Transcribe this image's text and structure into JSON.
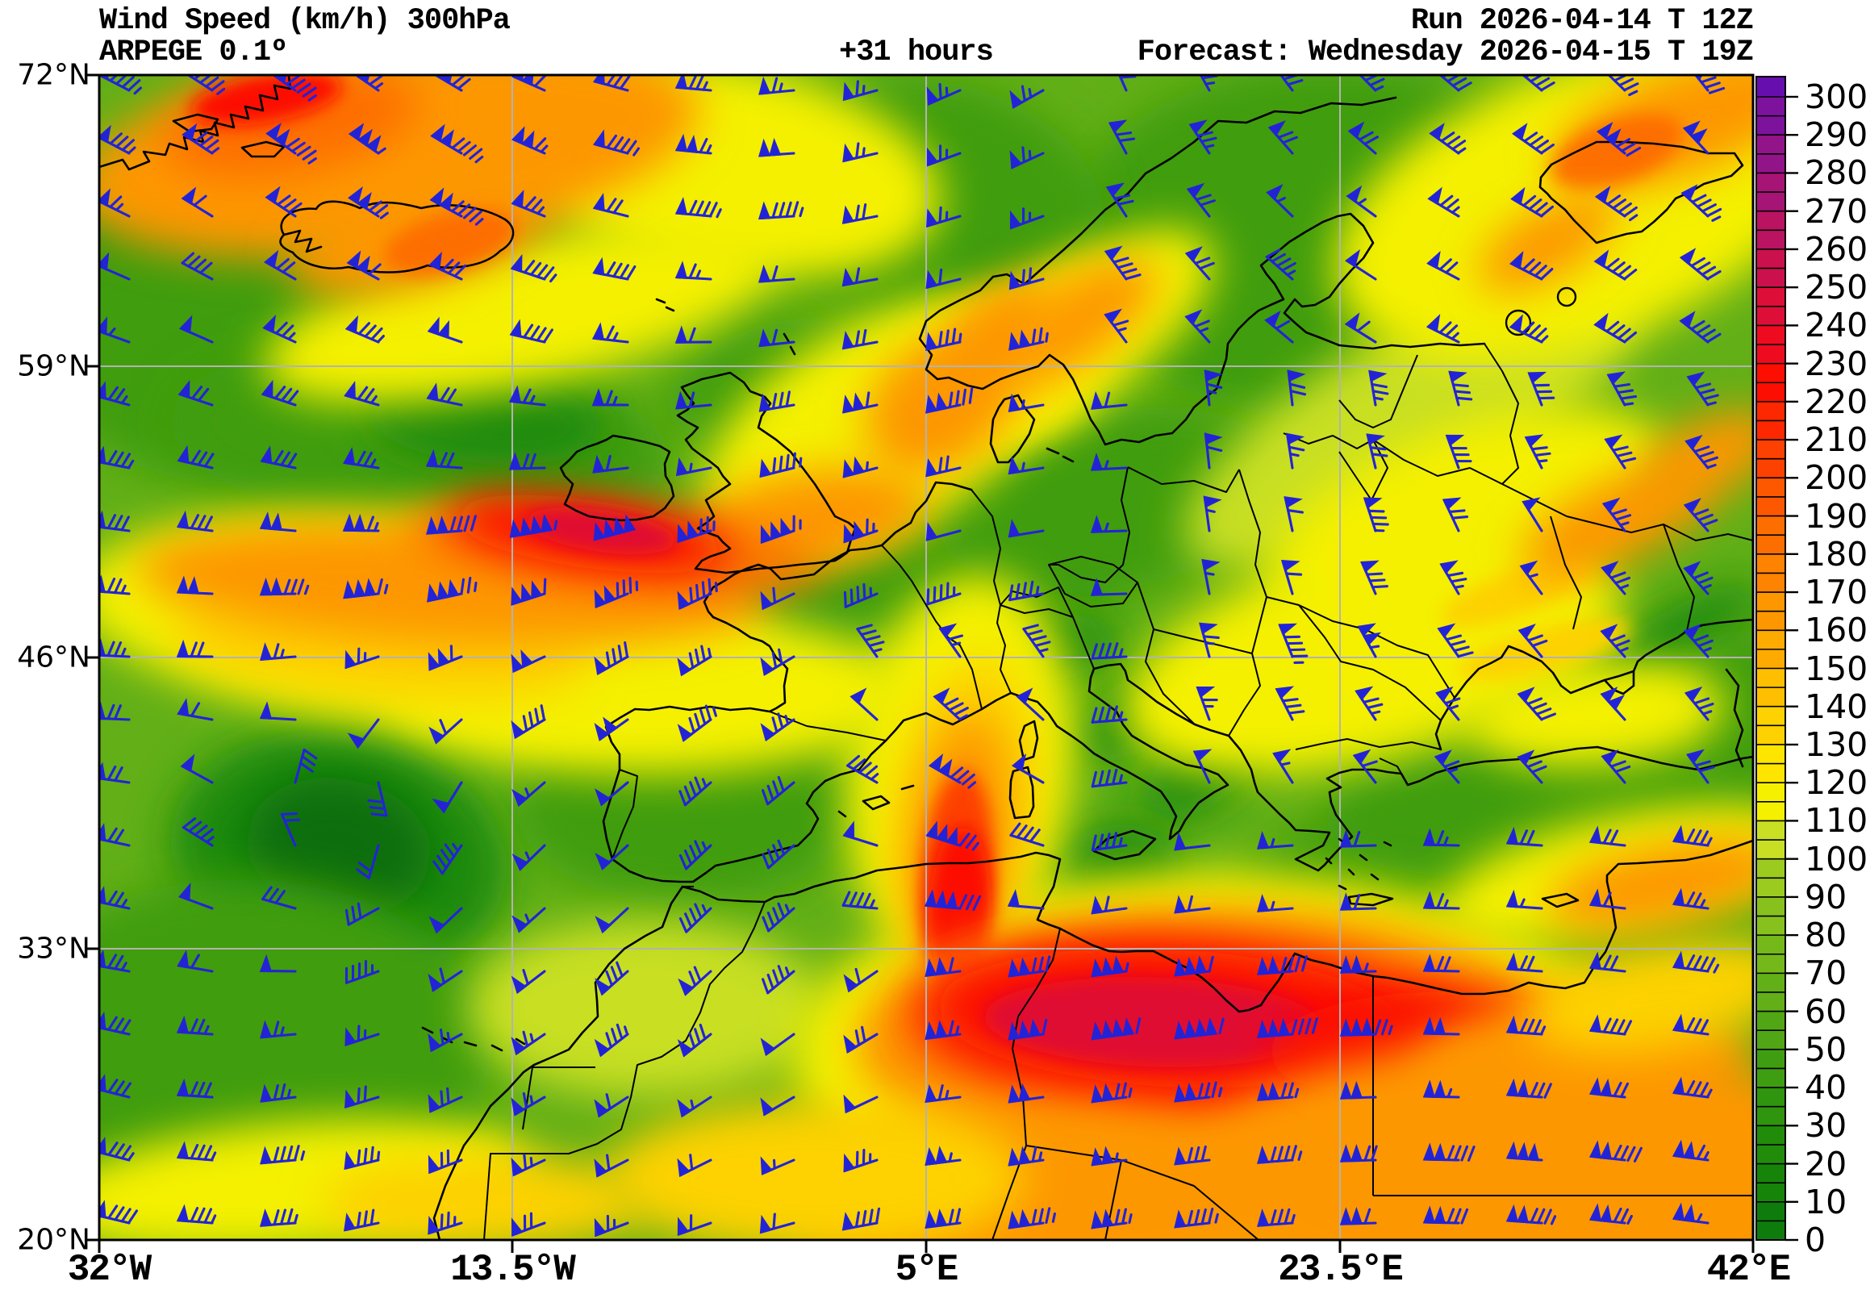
{
  "header": {
    "title_line1": "Wind Speed (km/h) 300hPa",
    "title_line2": "ARPEGE 0.1º",
    "run_label": "Run 2026-04-14 T 12Z",
    "lead_time": "+31 hours",
    "forecast_label": "Forecast: Wednesday 2026-04-15 T 19Z"
  },
  "map": {
    "x_axis_ticks": [
      "32°W",
      "13.5°W",
      "5°E",
      "23.5°E",
      "42°E"
    ],
    "y_axis_ticks": [
      "72°N",
      "59°N",
      "46°N",
      "33°N",
      "20°N"
    ],
    "grid_color": "#b3b3b3",
    "coastline_color": "#000000",
    "barb_color": "#2323d6"
  },
  "colorbar": {
    "unit": "km/h",
    "min": 0,
    "max": 300,
    "major_tick_step": 10,
    "minor_tick_step": 5,
    "tick_labels": [
      "0",
      "10",
      "20",
      "30",
      "40",
      "50",
      "60",
      "70",
      "80",
      "90",
      "100",
      "110",
      "120",
      "130",
      "140",
      "150",
      "160",
      "170",
      "180",
      "190",
      "200",
      "210",
      "220",
      "230",
      "240",
      "250",
      "260",
      "270",
      "280",
      "290",
      "300"
    ],
    "band_colors": [
      "#0e7c0c",
      "#168408",
      "#218c0a",
      "#2f940e",
      "#3f9d11",
      "#50a614",
      "#62af17",
      "#74b81a",
      "#87c11d",
      "#9ccb1f",
      "#c8df24",
      "#f4f000",
      "#fde500",
      "#fdd200",
      "#fdbf00",
      "#fdab00",
      "#fd9700",
      "#fd8300",
      "#fd6e00",
      "#fd5800",
      "#fd4100",
      "#fd2800",
      "#fc0f02",
      "#ee0b20",
      "#dd0e38",
      "#cb114d",
      "#b91361",
      "#a61475",
      "#921489",
      "#7d129c"
    ],
    "overflow_color": "#660fae"
  },
  "chart_data": {
    "type": "heatmap",
    "quantity": "wind speed",
    "unit": "km/h",
    "level": "300hPa",
    "model": "ARPEGE 0.1º",
    "run": "2026-04-14 12Z",
    "valid": "Wednesday 2026-04-15 19Z (+31 hours)",
    "lon_range": [
      "32°W",
      "42°E"
    ],
    "lat_range": [
      "20°N",
      "72°N"
    ],
    "scale_range_kmh": [
      0,
      300
    ],
    "features": [
      {
        "region": "North Atlantic jet, core just south of Ireland extending to S England",
        "approx_max_kmh": 220
      },
      {
        "region": "Greenland / Iceland orange band",
        "approx_max_kmh": 190
      },
      {
        "region": "Jet curving NE over North Sea toward Denmark / Baltic",
        "approx_max_kmh": 150
      },
      {
        "region": "Narrow arc from Corsica south across Tunisia",
        "approx_max_kmh": 190
      },
      {
        "region": "Strong jet core over Libya / N Africa",
        "approx_max_kmh": 230
      },
      {
        "region": "NE corner band near White Sea / Kola",
        "approx_max_kmh": 165
      },
      {
        "region": "E Ukraine orange streak",
        "approx_max_kmh": 150
      },
      {
        "region": "E Turkey orange streak",
        "approx_max_kmh": 150
      },
      {
        "region": "Calm dark-green minimum SW of Canary Islands",
        "approx_min_kmh": 10
      },
      {
        "region": "Dark-green minimum NW Atlantic near Greenland coast",
        "approx_min_kmh": 30
      }
    ]
  }
}
